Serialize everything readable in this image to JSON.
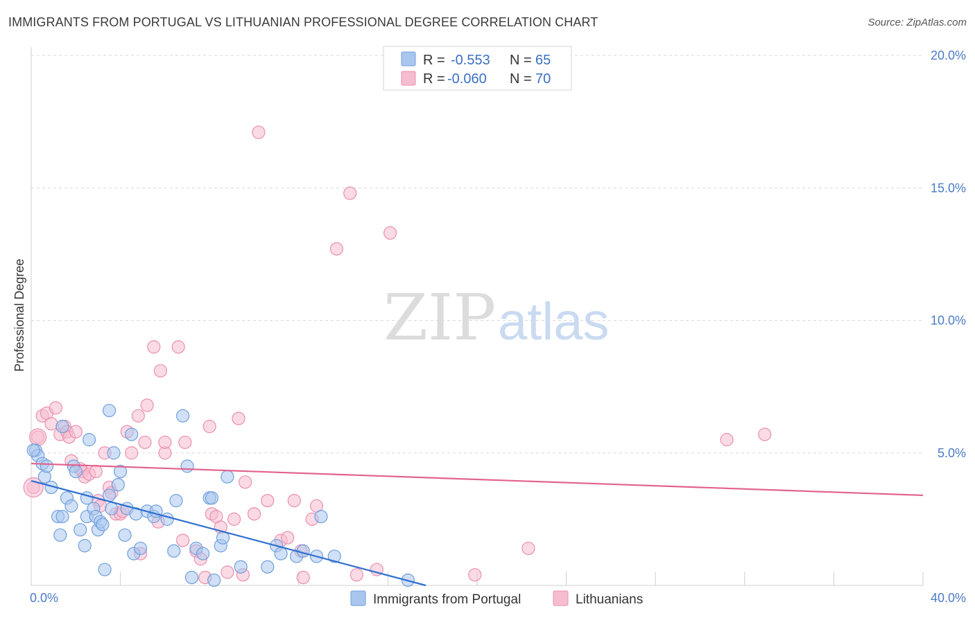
{
  "title": "IMMIGRANTS FROM PORTUGAL VS LITHUANIAN PROFESSIONAL DEGREE CORRELATION CHART",
  "source": "Source: ZipAtlas.com",
  "watermark": {
    "zip": "ZIP",
    "atlas": "atlas"
  },
  "colors": {
    "blue_fill": "#a9c6ee",
    "blue_stroke": "#6f9fdc",
    "blue_line": "#2f6fcf",
    "pink_fill": "#f6bcd0",
    "pink_stroke": "#ea8fae",
    "pink_line": "#e2628e",
    "grid": "#d9d9d9",
    "tick_text": "#4a7bc8"
  },
  "legend": {
    "rows": [
      {
        "r_label": "R = ",
        "r_value": "-0.553",
        "n_label": "N = ",
        "n_value": "65"
      },
      {
        "r_label": "R = ",
        "r_value": "-0.060",
        "n_label": "N = ",
        "n_value": "70"
      }
    ]
  },
  "bottom_legend": [
    "Immigrants from Portugal",
    "Lithuanians"
  ],
  "chart_data": {
    "type": "scatter",
    "title": "IMMIGRANTS FROM PORTUGAL VS LITHUANIAN PROFESSIONAL DEGREE CORRELATION CHART",
    "xlabel": "",
    "ylabel": "Professional Degree",
    "xlim": [
      0,
      40
    ],
    "ylim": [
      0,
      20
    ],
    "x_tick_labels": [
      "0.0%",
      "40.0%"
    ],
    "y_ticks": [
      5,
      10,
      15,
      20
    ],
    "y_tick_labels": [
      "5.0%",
      "10.0%",
      "15.0%",
      "20.0%"
    ],
    "grid": true,
    "legend_position": "top-center",
    "series": [
      {
        "name": "Immigrants from Portugal",
        "color": "blue",
        "R": -0.553,
        "N": 65,
        "trend": {
          "x": [
            0,
            17.7
          ],
          "y": [
            3.95,
            0.0
          ]
        },
        "points": [
          [
            0.2,
            5.1
          ],
          [
            0.3,
            4.9
          ],
          [
            0.5,
            4.6
          ],
          [
            0.6,
            4.1
          ],
          [
            0.9,
            3.7
          ],
          [
            0.7,
            4.5
          ],
          [
            1.2,
            2.6
          ],
          [
            1.4,
            2.6
          ],
          [
            1.4,
            6.0
          ],
          [
            1.3,
            1.9
          ],
          [
            1.6,
            3.3
          ],
          [
            1.8,
            3.0
          ],
          [
            1.9,
            4.5
          ],
          [
            2.0,
            4.3
          ],
          [
            2.2,
            2.1
          ],
          [
            2.4,
            1.5
          ],
          [
            2.5,
            2.6
          ],
          [
            2.5,
            3.3
          ],
          [
            2.6,
            5.5
          ],
          [
            2.8,
            2.9
          ],
          [
            2.9,
            2.6
          ],
          [
            3.0,
            2.1
          ],
          [
            3.1,
            2.4
          ],
          [
            3.2,
            2.3
          ],
          [
            3.3,
            0.6
          ],
          [
            3.5,
            3.4
          ],
          [
            3.5,
            6.6
          ],
          [
            3.6,
            2.9
          ],
          [
            3.7,
            5.0
          ],
          [
            3.9,
            3.8
          ],
          [
            4.0,
            4.3
          ],
          [
            4.2,
            1.9
          ],
          [
            4.3,
            2.9
          ],
          [
            4.5,
            5.7
          ],
          [
            4.6,
            1.2
          ],
          [
            4.7,
            2.7
          ],
          [
            4.9,
            1.4
          ],
          [
            5.2,
            2.8
          ],
          [
            5.5,
            2.6
          ],
          [
            5.6,
            2.8
          ],
          [
            6.1,
            2.5
          ],
          [
            6.4,
            1.3
          ],
          [
            6.5,
            3.2
          ],
          [
            6.8,
            6.4
          ],
          [
            7.0,
            4.5
          ],
          [
            7.2,
            0.3
          ],
          [
            7.4,
            1.4
          ],
          [
            7.7,
            1.2
          ],
          [
            8.0,
            3.3
          ],
          [
            8.2,
            0.2
          ],
          [
            8.5,
            1.5
          ],
          [
            8.6,
            1.8
          ],
          [
            8.8,
            4.1
          ],
          [
            9.4,
            0.7
          ],
          [
            10.6,
            0.7
          ],
          [
            11.0,
            1.5
          ],
          [
            11.2,
            1.2
          ],
          [
            11.9,
            1.1
          ],
          [
            12.2,
            1.3
          ],
          [
            12.8,
            1.1
          ],
          [
            13.0,
            2.6
          ],
          [
            13.6,
            1.1
          ],
          [
            16.9,
            0.2
          ],
          [
            0.1,
            5.1
          ],
          [
            8.1,
            3.3
          ]
        ]
      },
      {
        "name": "Lithuanians",
        "color": "pink",
        "R": -0.06,
        "N": 70,
        "trend": {
          "x": [
            0,
            40
          ],
          "y": [
            4.6,
            3.4
          ]
        },
        "points": [
          [
            0.1,
            3.7
          ],
          [
            0.3,
            5.6
          ],
          [
            0.5,
            6.4
          ],
          [
            0.7,
            6.5
          ],
          [
            0.9,
            6.1
          ],
          [
            1.1,
            6.7
          ],
          [
            1.3,
            5.7
          ],
          [
            1.5,
            6.0
          ],
          [
            1.6,
            5.8
          ],
          [
            1.7,
            5.6
          ],
          [
            1.8,
            4.7
          ],
          [
            2.0,
            5.8
          ],
          [
            2.2,
            4.4
          ],
          [
            2.3,
            4.3
          ],
          [
            2.4,
            4.1
          ],
          [
            2.6,
            4.2
          ],
          [
            2.9,
            4.3
          ],
          [
            3.0,
            3.2
          ],
          [
            3.1,
            3.0
          ],
          [
            3.3,
            5.0
          ],
          [
            3.5,
            3.7
          ],
          [
            3.6,
            3.5
          ],
          [
            3.8,
            2.7
          ],
          [
            4.0,
            2.7
          ],
          [
            4.1,
            2.8
          ],
          [
            4.3,
            5.8
          ],
          [
            4.5,
            5.0
          ],
          [
            4.8,
            6.4
          ],
          [
            4.9,
            1.2
          ],
          [
            5.1,
            5.4
          ],
          [
            5.2,
            6.8
          ],
          [
            5.5,
            9.0
          ],
          [
            5.7,
            2.4
          ],
          [
            5.8,
            8.1
          ],
          [
            6.0,
            5.0
          ],
          [
            6.0,
            5.4
          ],
          [
            6.6,
            9.0
          ],
          [
            6.8,
            1.7
          ],
          [
            6.9,
            5.4
          ],
          [
            7.4,
            1.3
          ],
          [
            7.6,
            1.0
          ],
          [
            7.8,
            0.3
          ],
          [
            8.0,
            6.0
          ],
          [
            8.1,
            2.7
          ],
          [
            8.3,
            2.6
          ],
          [
            8.5,
            2.2
          ],
          [
            8.8,
            0.5
          ],
          [
            9.1,
            2.5
          ],
          [
            9.3,
            6.3
          ],
          [
            9.5,
            0.4
          ],
          [
            9.6,
            3.9
          ],
          [
            10.0,
            2.7
          ],
          [
            10.2,
            17.1
          ],
          [
            10.6,
            3.2
          ],
          [
            11.2,
            1.7
          ],
          [
            11.5,
            1.8
          ],
          [
            11.8,
            3.2
          ],
          [
            12.1,
            1.3
          ],
          [
            12.2,
            0.3
          ],
          [
            12.6,
            2.5
          ],
          [
            12.8,
            3.0
          ],
          [
            13.7,
            12.7
          ],
          [
            14.3,
            14.8
          ],
          [
            14.6,
            0.4
          ],
          [
            15.5,
            0.6
          ],
          [
            16.1,
            13.3
          ],
          [
            19.9,
            0.4
          ],
          [
            22.3,
            1.4
          ],
          [
            31.2,
            5.5
          ],
          [
            32.9,
            5.7
          ]
        ]
      }
    ]
  }
}
